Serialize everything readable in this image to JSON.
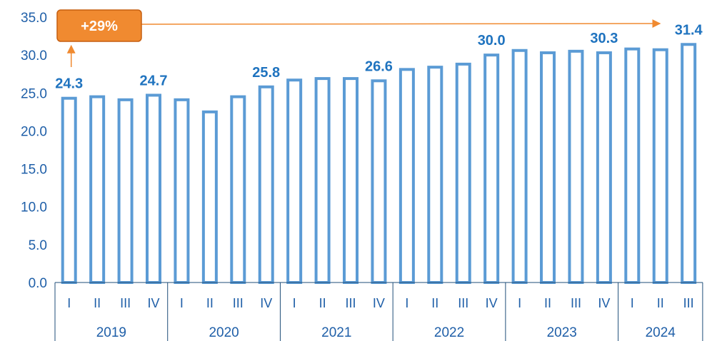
{
  "colors": {
    "bar_stroke": "#5b9bd5",
    "axis_text": "#1f5fa8",
    "data_label": "#1f73bf",
    "axis_line": "#1f4e79",
    "callout_fill": "#f08a30",
    "callout_stroke": "#c65f10"
  },
  "chart_data": {
    "type": "bar",
    "categories": [
      "I",
      "II",
      "III",
      "IV",
      "I",
      "II",
      "III",
      "IV",
      "I",
      "II",
      "III",
      "IV",
      "I",
      "II",
      "III",
      "IV",
      "I",
      "II",
      "III",
      "IV",
      "I",
      "II",
      "III"
    ],
    "groups": [
      {
        "label": "2019",
        "count": 4
      },
      {
        "label": "2020",
        "count": 4
      },
      {
        "label": "2021",
        "count": 4
      },
      {
        "label": "2022",
        "count": 4
      },
      {
        "label": "2023",
        "count": 4
      },
      {
        "label": "2024",
        "count": 3
      }
    ],
    "values": [
      24.3,
      24.5,
      24.1,
      24.7,
      24.1,
      22.5,
      24.5,
      25.8,
      26.7,
      26.9,
      26.9,
      26.6,
      28.1,
      28.4,
      28.8,
      30.0,
      30.6,
      30.3,
      30.5,
      30.3,
      30.8,
      30.7,
      31.4
    ],
    "data_labels": [
      {
        "index": 0,
        "text": "24.3"
      },
      {
        "index": 3,
        "text": "24.7"
      },
      {
        "index": 7,
        "text": "25.8"
      },
      {
        "index": 11,
        "text": "26.6"
      },
      {
        "index": 15,
        "text": "30.0"
      },
      {
        "index": 19,
        "text": "30.3"
      },
      {
        "index": 22,
        "text": "31.4"
      }
    ],
    "ylim": [
      0,
      35
    ],
    "yticks": [
      "0.0",
      "5.0",
      "10.0",
      "15.0",
      "20.0",
      "25.0",
      "30.0",
      "35.0"
    ],
    "ytick_values": [
      0,
      5,
      10,
      15,
      20,
      25,
      30,
      35
    ],
    "annotation": {
      "text": "+29%",
      "from_index": 0,
      "to_index": 22
    },
    "grid": false,
    "title": "",
    "xlabel": "",
    "ylabel": ""
  }
}
